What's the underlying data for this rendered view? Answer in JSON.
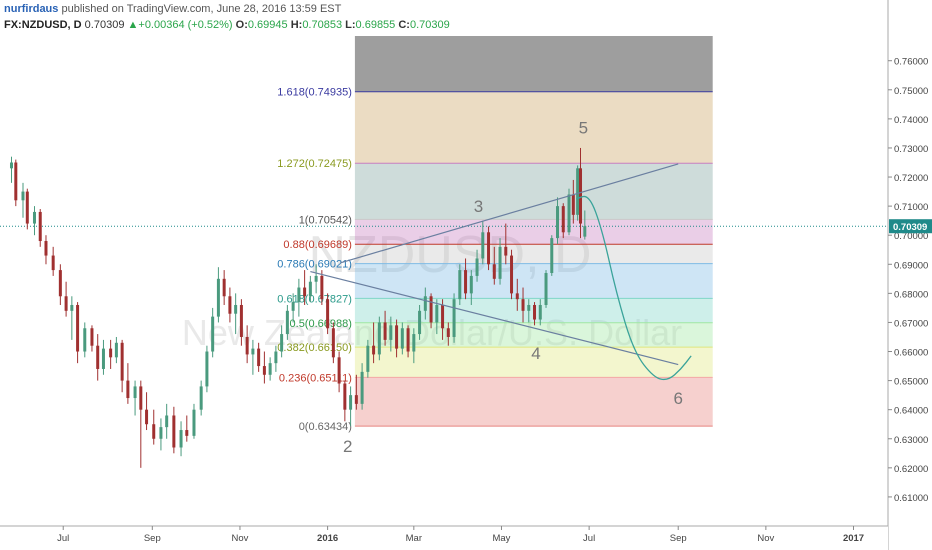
{
  "header": {
    "author": "nurfirdaus",
    "published_text": "published on TradingView.com, June 28, 2016 13:59 EST",
    "symbol": "FX:NZDUSD, D",
    "last": "0.70309",
    "change": "+0.00364 (+0.52%)",
    "open_label": "O:",
    "open": "0.69945",
    "high_label": "H:",
    "high": "0.70853",
    "low_label": "L:",
    "low": "0.69855",
    "close_label": "C:",
    "close": "0.70309",
    "up_arrow": "▲"
  },
  "watermark": {
    "symbol": "NZDUSD, D",
    "description": "New Zealand Dollar/U.S. Dollar"
  },
  "price_tag": "0.70309",
  "colors": {
    "up": "#4a9a7e",
    "down": "#a03030",
    "fib_0": "#e7837f",
    "fib_236": "#f3a8a4",
    "fib_382": "#dfe77f",
    "fib_5": "#9fe7a1",
    "fib_618": "#7fd6c7",
    "fib_786": "#7fbbe6",
    "fib_1": "#c9c9c9",
    "fib_1272": "#c87fc0",
    "fib_1618": "#7fa39f",
    "fib_top": "#caa260"
  },
  "chart_data": {
    "type": "candlestick",
    "y_axis": {
      "ylim": [
        0.6,
        0.7685
      ],
      "ticks": [
        "0.61000",
        "0.62000",
        "0.63000",
        "0.64000",
        "0.65000",
        "0.66000",
        "0.67000",
        "0.68000",
        "0.69000",
        "0.70000",
        "0.71000",
        "0.72000",
        "0.73000",
        "0.74000",
        "0.75000",
        "0.76000"
      ]
    },
    "x_axis": {
      "ticks": [
        "Jul",
        "Sep",
        "Nov",
        "2016",
        "Mar",
        "May",
        "Jul",
        "Sep",
        "Nov",
        "2017"
      ]
    },
    "fib_levels": [
      {
        "label": "0(0.63434)",
        "ratio": 0,
        "price": 0.63434
      },
      {
        "label": "0.236(0.65111)",
        "ratio": 0.236,
        "price": 0.65111
      },
      {
        "label": "0.382(0.66150)",
        "ratio": 0.382,
        "price": 0.6615
      },
      {
        "label": "0.5(0.66988)",
        "ratio": 0.5,
        "price": 0.66988
      },
      {
        "label": "0.618(0.67827)",
        "ratio": 0.618,
        "price": 0.67827
      },
      {
        "label": "0.786(0.69021)",
        "ratio": 0.786,
        "price": 0.69021
      },
      {
        "label": "0.88(0.69689)",
        "ratio": 0.88,
        "price": 0.69689
      },
      {
        "label": "1(0.70542)",
        "ratio": 1,
        "price": 0.70542
      },
      {
        "label": "1.272(0.72475)",
        "ratio": 1.272,
        "price": 0.72475
      },
      {
        "label": "1.618(0.74935)",
        "ratio": 1.618,
        "price": 0.74935
      }
    ],
    "fib_extends_above_to": 0.7685,
    "wave_labels": [
      {
        "text": "2",
        "date": "2016-01-15",
        "price": 0.6255
      },
      {
        "text": "3",
        "date": "2016-04-15",
        "price": 0.708
      },
      {
        "text": "4",
        "date": "2016-05-25",
        "price": 0.6575
      },
      {
        "text": "5",
        "date": "2016-06-27",
        "price": 0.735
      },
      {
        "text": "6",
        "date": "2016-09-01",
        "price": 0.642
      }
    ],
    "trendlines": [
      {
        "from": {
          "date": "2016-01-10",
          "price": 0.6905
        },
        "to": {
          "date": "2016-09-01",
          "price": 0.7245
        }
      },
      {
        "from": {
          "date": "2015-12-20",
          "price": 0.6875
        },
        "to": {
          "date": "2016-09-01",
          "price": 0.6555
        }
      }
    ],
    "projection_path": [
      {
        "date": "2016-06-22",
        "price": 0.7125
      },
      {
        "date": "2016-07-01",
        "price": 0.714
      },
      {
        "date": "2016-07-10",
        "price": 0.702
      },
      {
        "date": "2016-07-20",
        "price": 0.68
      },
      {
        "date": "2016-08-01",
        "price": 0.66
      },
      {
        "date": "2016-08-15",
        "price": 0.651
      },
      {
        "date": "2016-08-25",
        "price": 0.65
      },
      {
        "date": "2016-09-03",
        "price": 0.654
      },
      {
        "date": "2016-09-10",
        "price": 0.6585
      }
    ],
    "candles": [
      {
        "date": "2015-05-26",
        "open": 0.723,
        "high": 0.727,
        "low": 0.718,
        "close": 0.725
      },
      {
        "date": "2015-05-29",
        "open": 0.725,
        "high": 0.726,
        "low": 0.71,
        "close": 0.712
      },
      {
        "date": "2015-06-03",
        "open": 0.712,
        "high": 0.718,
        "low": 0.706,
        "close": 0.715
      },
      {
        "date": "2015-06-06",
        "open": 0.715,
        "high": 0.716,
        "low": 0.702,
        "close": 0.704
      },
      {
        "date": "2015-06-11",
        "open": 0.704,
        "high": 0.71,
        "low": 0.7,
        "close": 0.708
      },
      {
        "date": "2015-06-15",
        "open": 0.708,
        "high": 0.709,
        "low": 0.696,
        "close": 0.698
      },
      {
        "date": "2015-06-19",
        "open": 0.698,
        "high": 0.7,
        "low": 0.69,
        "close": 0.693
      },
      {
        "date": "2015-06-24",
        "open": 0.693,
        "high": 0.696,
        "low": 0.686,
        "close": 0.688
      },
      {
        "date": "2015-06-29",
        "open": 0.688,
        "high": 0.69,
        "low": 0.676,
        "close": 0.679
      },
      {
        "date": "2015-07-03",
        "open": 0.679,
        "high": 0.684,
        "low": 0.672,
        "close": 0.674
      },
      {
        "date": "2015-07-07",
        "open": 0.674,
        "high": 0.679,
        "low": 0.664,
        "close": 0.676
      },
      {
        "date": "2015-07-11",
        "open": 0.676,
        "high": 0.677,
        "low": 0.656,
        "close": 0.66
      },
      {
        "date": "2015-07-16",
        "open": 0.66,
        "high": 0.67,
        "low": 0.658,
        "close": 0.668
      },
      {
        "date": "2015-07-21",
        "open": 0.668,
        "high": 0.669,
        "low": 0.66,
        "close": 0.662
      },
      {
        "date": "2015-07-25",
        "open": 0.662,
        "high": 0.666,
        "low": 0.65,
        "close": 0.654
      },
      {
        "date": "2015-07-29",
        "open": 0.654,
        "high": 0.664,
        "low": 0.652,
        "close": 0.661
      },
      {
        "date": "2015-08-03",
        "open": 0.661,
        "high": 0.664,
        "low": 0.654,
        "close": 0.658
      },
      {
        "date": "2015-08-07",
        "open": 0.658,
        "high": 0.665,
        "low": 0.656,
        "close": 0.663
      },
      {
        "date": "2015-08-11",
        "open": 0.663,
        "high": 0.664,
        "low": 0.646,
        "close": 0.65
      },
      {
        "date": "2015-08-15",
        "open": 0.65,
        "high": 0.656,
        "low": 0.642,
        "close": 0.644
      },
      {
        "date": "2015-08-20",
        "open": 0.644,
        "high": 0.65,
        "low": 0.638,
        "close": 0.648
      },
      {
        "date": "2015-08-24",
        "open": 0.648,
        "high": 0.65,
        "low": 0.62,
        "close": 0.64
      },
      {
        "date": "2015-08-28",
        "open": 0.64,
        "high": 0.646,
        "low": 0.633,
        "close": 0.635
      },
      {
        "date": "2015-09-02",
        "open": 0.635,
        "high": 0.64,
        "low": 0.628,
        "close": 0.63
      },
      {
        "date": "2015-09-07",
        "open": 0.63,
        "high": 0.637,
        "low": 0.626,
        "close": 0.634
      },
      {
        "date": "2015-09-11",
        "open": 0.634,
        "high": 0.642,
        "low": 0.63,
        "close": 0.638
      },
      {
        "date": "2015-09-16",
        "open": 0.638,
        "high": 0.641,
        "low": 0.625,
        "close": 0.627
      },
      {
        "date": "2015-09-21",
        "open": 0.627,
        "high": 0.636,
        "low": 0.624,
        "close": 0.633
      },
      {
        "date": "2015-09-25",
        "open": 0.633,
        "high": 0.638,
        "low": 0.629,
        "close": 0.631
      },
      {
        "date": "2015-09-30",
        "open": 0.631,
        "high": 0.642,
        "low": 0.63,
        "close": 0.64
      },
      {
        "date": "2015-10-05",
        "open": 0.64,
        "high": 0.65,
        "low": 0.638,
        "close": 0.648
      },
      {
        "date": "2015-10-09",
        "open": 0.648,
        "high": 0.662,
        "low": 0.646,
        "close": 0.66
      },
      {
        "date": "2015-10-13",
        "open": 0.66,
        "high": 0.675,
        "low": 0.658,
        "close": 0.672
      },
      {
        "date": "2015-10-17",
        "open": 0.672,
        "high": 0.689,
        "low": 0.67,
        "close": 0.685
      },
      {
        "date": "2015-10-21",
        "open": 0.685,
        "high": 0.688,
        "low": 0.676,
        "close": 0.679
      },
      {
        "date": "2015-10-25",
        "open": 0.679,
        "high": 0.682,
        "low": 0.67,
        "close": 0.673
      },
      {
        "date": "2015-10-29",
        "open": 0.673,
        "high": 0.68,
        "low": 0.666,
        "close": 0.676
      },
      {
        "date": "2015-11-02",
        "open": 0.676,
        "high": 0.678,
        "low": 0.662,
        "close": 0.665
      },
      {
        "date": "2015-11-06",
        "open": 0.665,
        "high": 0.669,
        "low": 0.656,
        "close": 0.659
      },
      {
        "date": "2015-11-10",
        "open": 0.659,
        "high": 0.664,
        "low": 0.652,
        "close": 0.661
      },
      {
        "date": "2015-11-14",
        "open": 0.661,
        "high": 0.663,
        "low": 0.653,
        "close": 0.655
      },
      {
        "date": "2015-11-18",
        "open": 0.655,
        "high": 0.66,
        "low": 0.649,
        "close": 0.652
      },
      {
        "date": "2015-11-22",
        "open": 0.652,
        "high": 0.658,
        "low": 0.65,
        "close": 0.656
      },
      {
        "date": "2015-11-26",
        "open": 0.656,
        "high": 0.662,
        "low": 0.653,
        "close": 0.66
      },
      {
        "date": "2015-11-30",
        "open": 0.66,
        "high": 0.669,
        "low": 0.658,
        "close": 0.666
      },
      {
        "date": "2015-12-04",
        "open": 0.666,
        "high": 0.676,
        "low": 0.664,
        "close": 0.674
      },
      {
        "date": "2015-12-08",
        "open": 0.674,
        "high": 0.68,
        "low": 0.67,
        "close": 0.677
      },
      {
        "date": "2015-12-12",
        "open": 0.677,
        "high": 0.685,
        "low": 0.672,
        "close": 0.682
      },
      {
        "date": "2015-12-16",
        "open": 0.682,
        "high": 0.688,
        "low": 0.676,
        "close": 0.679
      },
      {
        "date": "2015-12-20",
        "open": 0.679,
        "high": 0.686,
        "low": 0.677,
        "close": 0.684
      },
      {
        "date": "2015-12-24",
        "open": 0.684,
        "high": 0.69,
        "low": 0.68,
        "close": 0.686
      },
      {
        "date": "2015-12-28",
        "open": 0.686,
        "high": 0.688,
        "low": 0.676,
        "close": 0.678
      },
      {
        "date": "2016-01-01",
        "open": 0.678,
        "high": 0.68,
        "low": 0.666,
        "close": 0.668
      },
      {
        "date": "2016-01-05",
        "open": 0.668,
        "high": 0.67,
        "low": 0.656,
        "close": 0.658
      },
      {
        "date": "2016-01-09",
        "open": 0.658,
        "high": 0.66,
        "low": 0.646,
        "close": 0.649
      },
      {
        "date": "2016-01-13",
        "open": 0.649,
        "high": 0.65,
        "low": 0.636,
        "close": 0.64
      },
      {
        "date": "2016-01-17",
        "open": 0.64,
        "high": 0.648,
        "low": 0.6343,
        "close": 0.645
      },
      {
        "date": "2016-01-21",
        "open": 0.645,
        "high": 0.652,
        "low": 0.64,
        "close": 0.642
      },
      {
        "date": "2016-01-25",
        "open": 0.642,
        "high": 0.656,
        "low": 0.64,
        "close": 0.653
      },
      {
        "date": "2016-01-29",
        "open": 0.653,
        "high": 0.664,
        "low": 0.651,
        "close": 0.662
      },
      {
        "date": "2016-02-02",
        "open": 0.662,
        "high": 0.67,
        "low": 0.656,
        "close": 0.659
      },
      {
        "date": "2016-02-06",
        "open": 0.659,
        "high": 0.672,
        "low": 0.657,
        "close": 0.67
      },
      {
        "date": "2016-02-10",
        "open": 0.67,
        "high": 0.674,
        "low": 0.662,
        "close": 0.664
      },
      {
        "date": "2016-02-14",
        "open": 0.664,
        "high": 0.672,
        "low": 0.66,
        "close": 0.669
      },
      {
        "date": "2016-02-18",
        "open": 0.669,
        "high": 0.671,
        "low": 0.658,
        "close": 0.661
      },
      {
        "date": "2016-02-22",
        "open": 0.661,
        "high": 0.67,
        "low": 0.659,
        "close": 0.668
      },
      {
        "date": "2016-02-26",
        "open": 0.668,
        "high": 0.669,
        "low": 0.658,
        "close": 0.66
      },
      {
        "date": "2016-03-01",
        "open": 0.66,
        "high": 0.668,
        "low": 0.656,
        "close": 0.666
      },
      {
        "date": "2016-03-05",
        "open": 0.666,
        "high": 0.676,
        "low": 0.664,
        "close": 0.674
      },
      {
        "date": "2016-03-09",
        "open": 0.674,
        "high": 0.682,
        "low": 0.671,
        "close": 0.679
      },
      {
        "date": "2016-03-13",
        "open": 0.679,
        "high": 0.68,
        "low": 0.668,
        "close": 0.67
      },
      {
        "date": "2016-03-17",
        "open": 0.67,
        "high": 0.678,
        "low": 0.666,
        "close": 0.676
      },
      {
        "date": "2016-03-21",
        "open": 0.676,
        "high": 0.678,
        "low": 0.664,
        "close": 0.668
      },
      {
        "date": "2016-03-25",
        "open": 0.668,
        "high": 0.67,
        "low": 0.662,
        "close": 0.665
      },
      {
        "date": "2016-03-29",
        "open": 0.665,
        "high": 0.68,
        "low": 0.663,
        "close": 0.678
      },
      {
        "date": "2016-04-02",
        "open": 0.678,
        "high": 0.69,
        "low": 0.676,
        "close": 0.688
      },
      {
        "date": "2016-04-06",
        "open": 0.688,
        "high": 0.692,
        "low": 0.678,
        "close": 0.68
      },
      {
        "date": "2016-04-10",
        "open": 0.68,
        "high": 0.688,
        "low": 0.676,
        "close": 0.686
      },
      {
        "date": "2016-04-14",
        "open": 0.686,
        "high": 0.695,
        "low": 0.684,
        "close": 0.692
      },
      {
        "date": "2016-04-18",
        "open": 0.692,
        "high": 0.705,
        "low": 0.69,
        "close": 0.701
      },
      {
        "date": "2016-04-22",
        "open": 0.701,
        "high": 0.703,
        "low": 0.688,
        "close": 0.69
      },
      {
        "date": "2016-04-26",
        "open": 0.69,
        "high": 0.696,
        "low": 0.683,
        "close": 0.685
      },
      {
        "date": "2016-04-30",
        "open": 0.685,
        "high": 0.699,
        "low": 0.683,
        "close": 0.696
      },
      {
        "date": "2016-05-04",
        "open": 0.696,
        "high": 0.704,
        "low": 0.69,
        "close": 0.693
      },
      {
        "date": "2016-05-08",
        "open": 0.693,
        "high": 0.695,
        "low": 0.678,
        "close": 0.68
      },
      {
        "date": "2016-05-12",
        "open": 0.68,
        "high": 0.685,
        "low": 0.674,
        "close": 0.678
      },
      {
        "date": "2016-05-16",
        "open": 0.678,
        "high": 0.682,
        "low": 0.67,
        "close": 0.674
      },
      {
        "date": "2016-05-20",
        "open": 0.674,
        "high": 0.678,
        "low": 0.67,
        "close": 0.676
      },
      {
        "date": "2016-05-24",
        "open": 0.676,
        "high": 0.677,
        "low": 0.669,
        "close": 0.671
      },
      {
        "date": "2016-05-28",
        "open": 0.671,
        "high": 0.678,
        "low": 0.669,
        "close": 0.676
      },
      {
        "date": "2016-06-01",
        "open": 0.676,
        "high": 0.688,
        "low": 0.675,
        "close": 0.687
      },
      {
        "date": "2016-06-05",
        "open": 0.687,
        "high": 0.7,
        "low": 0.686,
        "close": 0.699
      },
      {
        "date": "2016-06-09",
        "open": 0.699,
        "high": 0.713,
        "low": 0.697,
        "close": 0.71
      },
      {
        "date": "2016-06-13",
        "open": 0.71,
        "high": 0.711,
        "low": 0.699,
        "close": 0.701
      },
      {
        "date": "2016-06-17",
        "open": 0.701,
        "high": 0.716,
        "low": 0.7,
        "close": 0.714
      },
      {
        "date": "2016-06-20",
        "open": 0.714,
        "high": 0.719,
        "low": 0.704,
        "close": 0.707
      },
      {
        "date": "2016-06-23",
        "open": 0.707,
        "high": 0.724,
        "low": 0.705,
        "close": 0.723
      },
      {
        "date": "2016-06-25",
        "open": 0.723,
        "high": 0.73,
        "low": 0.699,
        "close": 0.704
      },
      {
        "date": "2016-06-28",
        "open": 0.6995,
        "high": 0.7085,
        "low": 0.6985,
        "close": 0.7031
      }
    ]
  }
}
